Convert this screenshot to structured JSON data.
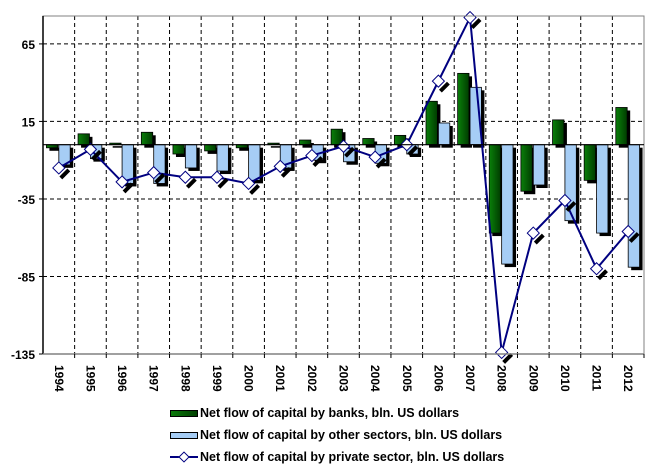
{
  "chart_data": {
    "type": "bar",
    "title": "",
    "xlabel": "",
    "ylabel": "",
    "ylim": [
      -135,
      83
    ],
    "yticks": [
      65,
      15,
      -35,
      -85,
      -135
    ],
    "grid": true,
    "legend_position": "bottom",
    "categories": [
      "1994",
      "1995",
      "1996",
      "1997",
      "1998",
      "1999",
      "2000",
      "2001",
      "2002",
      "2003",
      "2004",
      "2005",
      "2006",
      "2007",
      "2008",
      "2009",
      "2010",
      "2011",
      "2012"
    ],
    "series": [
      {
        "name": "Net flow of capital by banks, bln. US dollars",
        "type": "bar",
        "color": "#006400",
        "values": [
          -2,
          7,
          1,
          8,
          -6,
          -4,
          -2,
          1,
          3,
          10,
          4,
          6,
          28,
          46,
          -57,
          -30,
          16,
          -23,
          24
        ]
      },
      {
        "name": "Net flow of capital by other sectors, bln. US dollars",
        "type": "bar",
        "color": "#a6cdf5",
        "values": [
          -13,
          -9,
          -25,
          -25,
          -15,
          -17,
          -23,
          -15,
          -10,
          -11,
          -12,
          -6,
          14,
          37,
          -77,
          -26,
          -49,
          -57,
          -79
        ]
      },
      {
        "name": "Net flow of capital by private sector, bln. US dollars",
        "type": "line",
        "color": "#000080",
        "values": [
          -15,
          -3,
          -24,
          -18,
          -21,
          -21,
          -25,
          -14,
          -7,
          -1,
          -8,
          0,
          41,
          82,
          -134,
          -57,
          -36,
          -80,
          -56
        ]
      }
    ]
  },
  "legend": {
    "items": [
      {
        "label": "Net flow of capital by banks, bln. US dollars"
      },
      {
        "label": "Net flow of capital by other sectors, bln. US dollars"
      },
      {
        "label": "Net flow of capital by private sector, bln. US dollars"
      }
    ]
  }
}
